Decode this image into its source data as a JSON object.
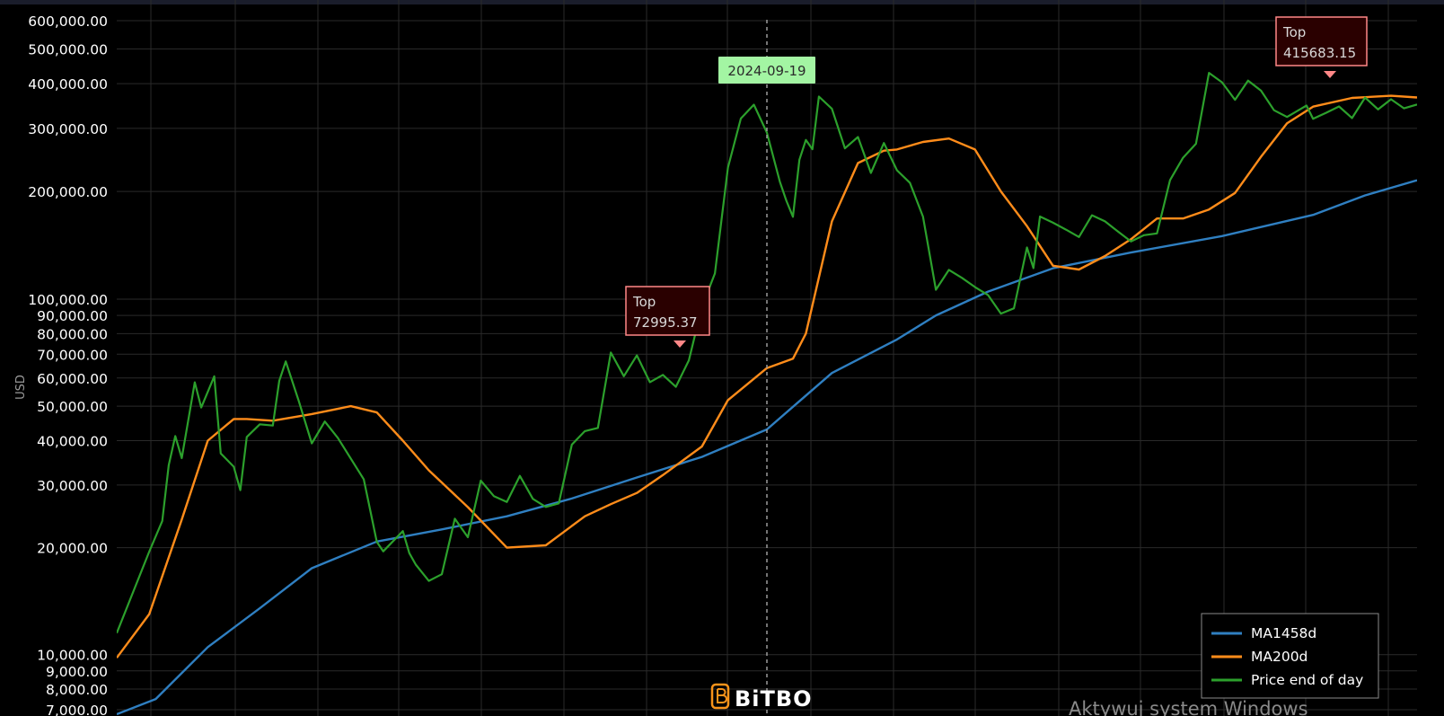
{
  "chart_data": {
    "type": "line",
    "ylabel": "USD",
    "yscale": "log",
    "ylim": [
      7000,
      600000
    ],
    "grid": true,
    "legend_position": "bottom-right",
    "ytick_labels": [
      "600,000.00",
      "500,000.00",
      "400,000.00",
      "300,000.00",
      "200,000.00",
      "100,000.00",
      "90,000.00",
      "80,000.00",
      "70,000.00",
      "60,000.00",
      "50,000.00",
      "40,000.00",
      "30,000.00",
      "20,000.00",
      "10,000.00",
      "9,000.00",
      "8,000.00",
      "7,000.00"
    ],
    "ytick_values": [
      600000,
      500000,
      400000,
      300000,
      200000,
      100000,
      90000,
      80000,
      70000,
      60000,
      50000,
      40000,
      30000,
      20000,
      10000,
      9000,
      8000,
      7000
    ],
    "colors": {
      "ma1458": "#2f7fc1",
      "ma200": "#ff8c1a",
      "price": "#2ca02c",
      "grid": "#2a2a2a",
      "date_marker": "#9a9a9a",
      "date_box": "#a3f5a3",
      "top_box_fill": "#2a0000",
      "top_box_border": "#ff8888"
    },
    "series": [
      {
        "name": "MA1458d",
        "color": "#2f7fc1",
        "t": [
          0,
          0.03,
          0.07,
          0.11,
          0.15,
          0.2,
          0.25,
          0.3,
          0.35,
          0.4,
          0.45,
          0.5,
          0.55,
          0.6,
          0.63,
          0.67,
          0.72,
          0.78,
          0.85,
          0.92,
          0.96,
          1.0
        ],
        "values": [
          6800,
          7500,
          10500,
          13500,
          17500,
          20800,
          22500,
          24500,
          27500,
          31500,
          36000,
          43000,
          62000,
          77000,
          90000,
          105000,
          122000,
          135000,
          150000,
          172000,
          195000,
          215000
        ]
      },
      {
        "name": "MA200d",
        "color": "#ff8c1a",
        "t": [
          0,
          0.025,
          0.05,
          0.07,
          0.09,
          0.1,
          0.12,
          0.15,
          0.18,
          0.2,
          0.22,
          0.24,
          0.27,
          0.3,
          0.33,
          0.36,
          0.38,
          0.4,
          0.42,
          0.45,
          0.47,
          0.5,
          0.52,
          0.53,
          0.55,
          0.57,
          0.59,
          0.6,
          0.62,
          0.64,
          0.66,
          0.68,
          0.7,
          0.72,
          0.74,
          0.76,
          0.78,
          0.8,
          0.82,
          0.84,
          0.86,
          0.88,
          0.9,
          0.92,
          0.95,
          0.98,
          1.0
        ],
        "values": [
          9800,
          13000,
          24000,
          40000,
          46000,
          46000,
          45500,
          47500,
          50000,
          48000,
          40000,
          33000,
          26000,
          20000,
          20300,
          24500,
          26500,
          28500,
          32000,
          38500,
          52000,
          64000,
          68000,
          80000,
          165000,
          240000,
          260000,
          262000,
          275000,
          281000,
          262000,
          200000,
          160000,
          124000,
          121000,
          132000,
          147000,
          168000,
          168000,
          178000,
          198000,
          250000,
          310000,
          345000,
          365000,
          370000,
          366000
        ]
      },
      {
        "name": "Price end of day",
        "color": "#2ca02c",
        "t": [
          0,
          0.01,
          0.025,
          0.035,
          0.04,
          0.045,
          0.05,
          0.06,
          0.065,
          0.075,
          0.08,
          0.09,
          0.095,
          0.1,
          0.11,
          0.12,
          0.125,
          0.13,
          0.14,
          0.15,
          0.16,
          0.17,
          0.19,
          0.2,
          0.205,
          0.22,
          0.225,
          0.23,
          0.24,
          0.25,
          0.26,
          0.27,
          0.28,
          0.29,
          0.3,
          0.31,
          0.32,
          0.33,
          0.34,
          0.35,
          0.36,
          0.37,
          0.38,
          0.39,
          0.4,
          0.41,
          0.42,
          0.43,
          0.44,
          0.45,
          0.46,
          0.47,
          0.48,
          0.49,
          0.5,
          0.51,
          0.515,
          0.52,
          0.525,
          0.53,
          0.535,
          0.54,
          0.55,
          0.56,
          0.57,
          0.58,
          0.59,
          0.6,
          0.61,
          0.62,
          0.63,
          0.64,
          0.65,
          0.66,
          0.67,
          0.68,
          0.69,
          0.7,
          0.705,
          0.71,
          0.72,
          0.73,
          0.74,
          0.75,
          0.76,
          0.77,
          0.78,
          0.79,
          0.8,
          0.81,
          0.82,
          0.83,
          0.84,
          0.85,
          0.86,
          0.87,
          0.88,
          0.89,
          0.9,
          0.91,
          0.915,
          0.92,
          0.93,
          0.94,
          0.95,
          0.96,
          0.97,
          0.98,
          0.99,
          1.0
        ],
        "values": [
          11500,
          14000,
          19000,
          23000,
          33000,
          40000,
          35000,
          58000,
          50000,
          62000,
          38000,
          35000,
          30000,
          42000,
          45000,
          44000,
          58000,
          65000,
          50000,
          38000,
          44000,
          40000,
          31000,
          21000,
          20000,
          23000,
          20000,
          18500,
          16500,
          17000,
          24000,
          21000,
          30000,
          27000,
          26000,
          31000,
          27000,
          26000,
          27000,
          40000,
          44000,
          45000,
          73000,
          62000,
          70000,
          58000,
          60000,
          55000,
          65000,
          92000,
          115000,
          230000,
          320000,
          355000,
          300000,
          220000,
          195000,
          175000,
          250000,
          280000,
          260000,
          360000,
          330000,
          255000,
          275000,
          220000,
          270000,
          230000,
          215000,
          175000,
          110000,
          125000,
          118000,
          110000,
          103000,
          90000,
          92000,
          135000,
          118000,
          165000,
          160000,
          155000,
          150000,
          175000,
          170000,
          160000,
          150000,
          155000,
          155000,
          215000,
          245000,
          265000,
          415000,
          390000,
          350000,
          400000,
          380000,
          340000,
          330000,
          350000,
          360000,
          330000,
          340000,
          350000,
          320000,
          360000,
          330000,
          350000,
          330000,
          350000
        ]
      }
    ],
    "annotations": [
      {
        "type": "top",
        "label": "Top",
        "value_label": "72995.37",
        "value": 72995.37
      },
      {
        "type": "top",
        "label": "Top",
        "value_label": "415683.15",
        "value": 415683.15
      },
      {
        "type": "date-marker",
        "label": "2024-09-19"
      }
    ]
  },
  "legend": {
    "items": [
      {
        "label": "MA1458d",
        "color": "#2f7fc1"
      },
      {
        "label": "MA200d",
        "color": "#ff8c1a"
      },
      {
        "label": "Price end of day",
        "color": "#2ca02c"
      }
    ]
  },
  "logo": {
    "text": "BiTBO",
    "icon": "bitcoin-b-icon",
    "icon_color": "#f7931a"
  },
  "watermark": {
    "text": "Aktywuj system Windows"
  }
}
